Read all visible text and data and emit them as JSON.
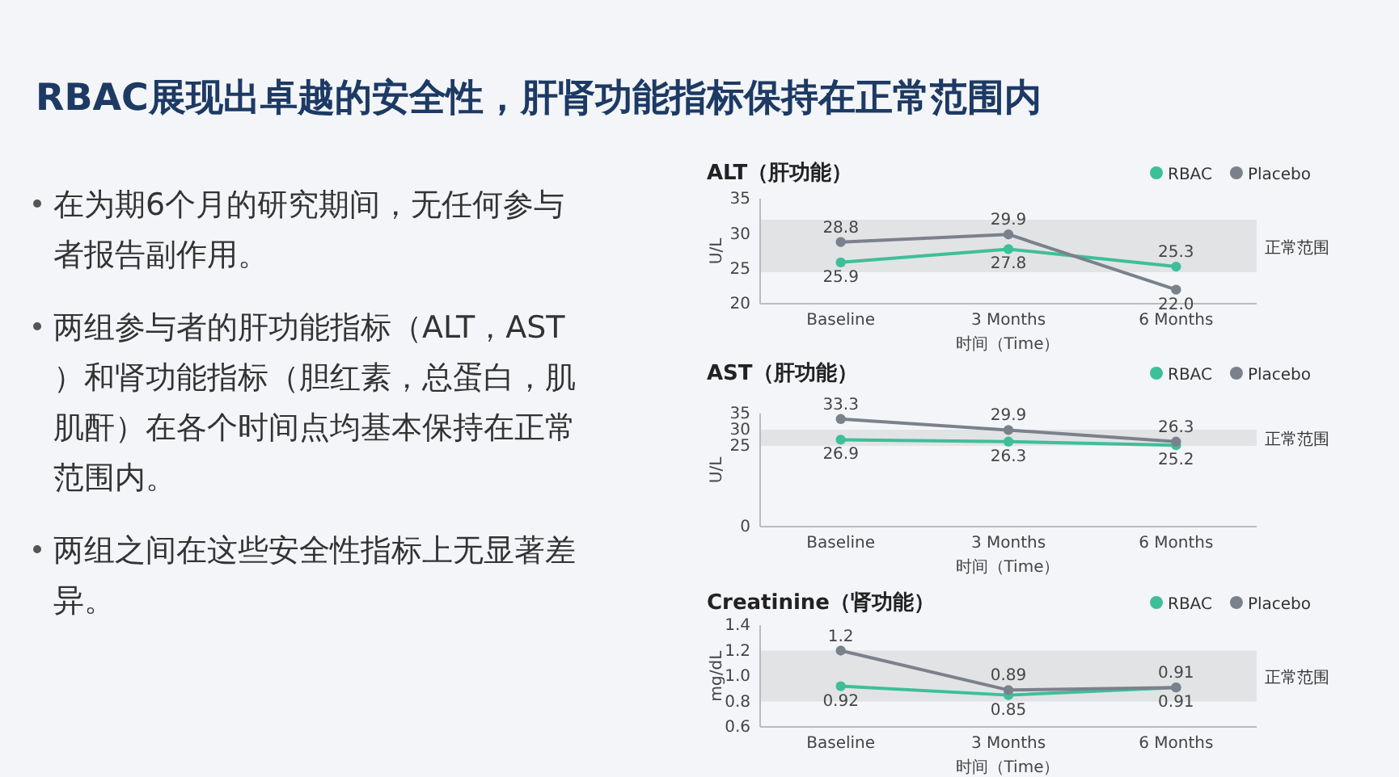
{
  "chart_data": [
    {
      "type": "other",
      "title": "RBAC展现出卓越的安全性，肝肾功能指标保持在正常范围内",
      "annotations": [
        "在为期6个月的研究期间，无任何参与者报告副作用。",
        "两组参与者的肝功能指标（ALT，AST）和肾功能指标（胆红素，总蛋白，肌肌酐）在各个时间点均基本保持在正常范围内。",
        "两组之间在这些安全性指标上无显著差异。"
      ]
    },
    {
      "type": "line",
      "title": "ALT（肝功能）",
      "xlabel": "时间（Time）",
      "ylabel": "U/L",
      "categories": [
        "Baseline",
        "3 Months",
        "6 Months"
      ],
      "ylim": [
        20,
        35
      ],
      "yticks": [
        20,
        25,
        30,
        35
      ],
      "marker": "circle",
      "legend": "top right",
      "grid": false,
      "bands": [
        {
          "axis": "y",
          "from": 24.5,
          "to": 32,
          "label": "正常范围",
          "color": "#e2e3e5"
        }
      ],
      "series": [
        {
          "name": "RBAC",
          "color": "#3dbf9a",
          "values": [
            25.9,
            27.8,
            25.3
          ],
          "value_labels": [
            "25.9",
            "27.8",
            "25.3"
          ]
        },
        {
          "name": "Placebo",
          "color": "#7b818c",
          "values": [
            28.8,
            29.9,
            22.0
          ],
          "value_labels": [
            "28.8",
            "29.9",
            "22.0"
          ]
        }
      ]
    },
    {
      "type": "line",
      "title": "AST（肝功能）",
      "xlabel": "时间（Time）",
      "ylabel": "U/L",
      "categories": [
        "Baseline",
        "3 Months",
        "6 Months"
      ],
      "ylim": [
        0,
        35
      ],
      "yticks": [
        0,
        25,
        30,
        35
      ],
      "marker": "circle",
      "legend": "top right",
      "grid": false,
      "bands": [
        {
          "axis": "y",
          "from": 25,
          "to": 30,
          "label": "正常范围",
          "color": "#e2e3e5"
        }
      ],
      "series": [
        {
          "name": "RBAC",
          "color": "#3dbf9a",
          "values": [
            26.9,
            26.3,
            25.2
          ],
          "value_labels": [
            "26.9",
            "26.3",
            "25.2"
          ]
        },
        {
          "name": "Placebo",
          "color": "#7b818c",
          "values": [
            33.3,
            29.9,
            26.3
          ],
          "value_labels": [
            "33.3",
            "29.9",
            "26.3"
          ]
        }
      ]
    },
    {
      "type": "line",
      "title": "Creatinine（肾功能）",
      "xlabel": "时间（Time）",
      "ylabel": "mg/dL",
      "categories": [
        "Baseline",
        "3 Months",
        "6 Months"
      ],
      "ylim": [
        0.6,
        1.4
      ],
      "yticks": [
        0.6,
        0.8,
        {
          "value": 1,
          "label": "1.0"
        },
        1.2,
        1.4
      ],
      "marker": "circle",
      "legend": "top right",
      "grid": false,
      "bands": [
        {
          "axis": "y",
          "from": 0.8,
          "to": 1.2,
          "label": "正常范围",
          "color": "#e2e3e5"
        }
      ],
      "series": [
        {
          "name": "RBAC",
          "color": "#3dbf9a",
          "values": [
            0.92,
            0.85,
            0.91
          ],
          "value_labels": [
            "0.92",
            "0.85",
            "0.91"
          ]
        },
        {
          "name": "Placebo",
          "color": "#7b818c",
          "values": [
            1.2,
            0.89,
            0.91
          ],
          "value_labels": [
            "1.2",
            "0.89",
            "0.91"
          ]
        }
      ]
    }
  ]
}
